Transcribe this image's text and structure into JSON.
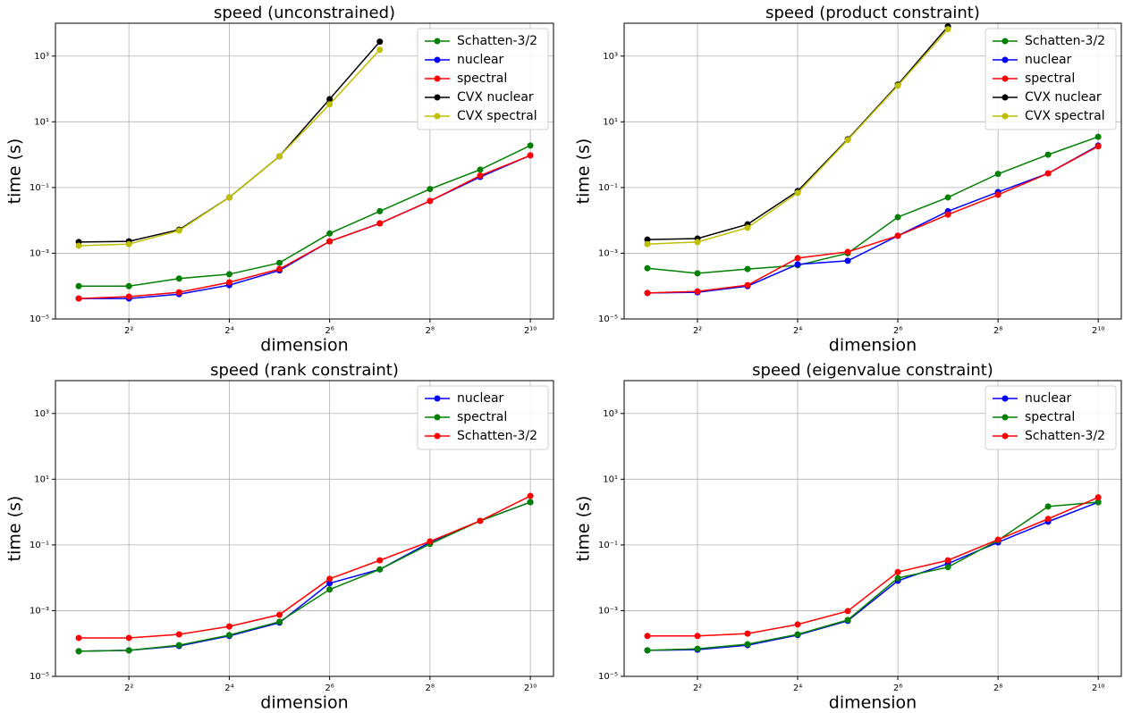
{
  "chart_data": [
    {
      "type": "line",
      "title": "speed (unconstrained)",
      "x_label": "dimension",
      "y_label": "time (s)",
      "x": [
        2,
        4,
        8,
        16,
        32,
        64,
        128,
        256,
        512,
        1024
      ],
      "x_log_base": 2,
      "y_log_base": 10,
      "grid": true,
      "legend": "upper right",
      "xlim": [
        1.45,
        1410
      ],
      "ylim": [
        1e-05,
        10000
      ],
      "xticks": [
        {
          "value": 4,
          "label": "2²"
        },
        {
          "value": 16,
          "label": "2⁴"
        },
        {
          "value": 64,
          "label": "2⁶"
        },
        {
          "value": 256,
          "label": "2⁸"
        },
        {
          "value": 1024,
          "label": "2¹⁰"
        }
      ],
      "yticks": [
        {
          "value": 1e-05,
          "label": "10⁻⁵"
        },
        {
          "value": 0.001,
          "label": "10⁻³"
        },
        {
          "value": 0.1,
          "label": "10⁻¹"
        },
        {
          "value": 10,
          "label": "10¹"
        },
        {
          "value": 1000,
          "label": "10³"
        }
      ],
      "series": [
        {
          "name": "Schatten-3/2",
          "color": "#008000",
          "values": [
            0.0001,
            0.0001,
            0.00017,
            0.00023,
            0.00051,
            0.004,
            0.019,
            0.09,
            0.35,
            1.9
          ]
        },
        {
          "name": "nuclear",
          "color": "#0000ff",
          "values": [
            4.2e-05,
            4.2e-05,
            5.7e-05,
            0.000107,
            0.0003,
            0.0023,
            0.0081,
            0.039,
            0.21,
            0.95
          ]
        },
        {
          "name": "spectral",
          "color": "#ff0000",
          "values": [
            4.2e-05,
            4.8e-05,
            6.5e-05,
            0.00013,
            0.00033,
            0.0023,
            0.0081,
            0.039,
            0.23,
            0.95
          ]
        },
        {
          "name": "CVX nuclear",
          "color": "#000000",
          "values": [
            0.0022,
            0.0023,
            0.0052,
            0.05,
            0.89,
            49,
            2750,
            null,
            null,
            null
          ]
        },
        {
          "name": "CVX spectral",
          "color": "#bfbf00",
          "values": [
            0.0017,
            0.0019,
            0.0049,
            0.05,
            0.89,
            34,
            1550,
            null,
            null,
            null
          ]
        }
      ]
    },
    {
      "type": "line",
      "title": "speed (product constraint)",
      "x_label": "dimension",
      "y_label": "time (s)",
      "x": [
        2,
        4,
        8,
        16,
        32,
        64,
        128,
        256,
        512,
        1024
      ],
      "x_log_base": 2,
      "y_log_base": 10,
      "grid": true,
      "legend": "upper right",
      "xlim": [
        1.45,
        1410
      ],
      "ylim": [
        1e-05,
        10000
      ],
      "xticks": [
        {
          "value": 4,
          "label": "2²"
        },
        {
          "value": 16,
          "label": "2⁴"
        },
        {
          "value": 64,
          "label": "2⁶"
        },
        {
          "value": 256,
          "label": "2⁸"
        },
        {
          "value": 1024,
          "label": "2¹⁰"
        }
      ],
      "yticks": [
        {
          "value": 1e-05,
          "label": "10⁻⁵"
        },
        {
          "value": 0.001,
          "label": "10⁻³"
        },
        {
          "value": 0.1,
          "label": "10⁻¹"
        },
        {
          "value": 10,
          "label": "10¹"
        },
        {
          "value": 1000,
          "label": "10³"
        }
      ],
      "series": [
        {
          "name": "Schatten-3/2",
          "color": "#008000",
          "values": [
            0.00035,
            0.000245,
            0.00033,
            0.00043,
            0.001,
            0.0126,
            0.05,
            0.26,
            1.0,
            3.5
          ]
        },
        {
          "name": "nuclear",
          "color": "#0000ff",
          "values": [
            6.2e-05,
            6.5e-05,
            0.0001,
            0.00046,
            0.00059,
            0.0034,
            0.019,
            0.073,
            0.27,
            1.9
          ]
        },
        {
          "name": "spectral",
          "color": "#ff0000",
          "values": [
            6.2e-05,
            6.9e-05,
            0.000107,
            0.00071,
            0.0011,
            0.0034,
            0.015,
            0.06,
            0.27,
            1.8
          ]
        },
        {
          "name": "CVX nuclear",
          "color": "#000000",
          "values": [
            0.0026,
            0.0028,
            0.0076,
            0.078,
            2.95,
            135,
            8000,
            null,
            null,
            null
          ]
        },
        {
          "name": "CVX spectral",
          "color": "#bfbf00",
          "values": [
            0.0019,
            0.0022,
            0.006,
            0.069,
            2.8,
            126,
            6600,
            null,
            null,
            null
          ]
        }
      ]
    },
    {
      "type": "line",
      "title": "speed (rank constraint)",
      "x_label": "dimension",
      "y_label": "time (s)",
      "x": [
        2,
        4,
        8,
        16,
        32,
        64,
        128,
        256,
        512,
        1024
      ],
      "x_log_base": 2,
      "y_log_base": 10,
      "grid": true,
      "legend": "upper right",
      "xlim": [
        1.45,
        1410
      ],
      "ylim": [
        1e-05,
        10000
      ],
      "xticks": [
        {
          "value": 4,
          "label": "2²"
        },
        {
          "value": 16,
          "label": "2⁴"
        },
        {
          "value": 64,
          "label": "2⁶"
        },
        {
          "value": 256,
          "label": "2⁸"
        },
        {
          "value": 1024,
          "label": "2¹⁰"
        }
      ],
      "yticks": [
        {
          "value": 1e-05,
          "label": "10⁻⁵"
        },
        {
          "value": 0.001,
          "label": "10⁻³"
        },
        {
          "value": 0.1,
          "label": "10⁻¹"
        },
        {
          "value": 10,
          "label": "10¹"
        },
        {
          "value": 1000,
          "label": "10³"
        }
      ],
      "series": [
        {
          "name": "nuclear",
          "color": "#0000ff",
          "values": [
            5.8e-05,
            6.2e-05,
            8.4e-05,
            0.00017,
            0.00043,
            0.0068,
            0.018,
            0.12,
            0.54,
            2.0
          ]
        },
        {
          "name": "spectral",
          "color": "#008000",
          "values": [
            5.8e-05,
            6.2e-05,
            8.9e-05,
            0.00018,
            0.00046,
            0.0044,
            0.018,
            0.107,
            0.54,
            2.0
          ]
        },
        {
          "name": "Schatten-3/2",
          "color": "#ff0000",
          "values": [
            0.000148,
            0.000148,
            0.00019,
            0.00033,
            0.00075,
            0.0093,
            0.034,
            0.128,
            0.54,
            3.1
          ]
        }
      ]
    },
    {
      "type": "line",
      "title": "speed (eigenvalue constraint)",
      "x_label": "dimension",
      "y_label": "time (s)",
      "x": [
        2,
        4,
        8,
        16,
        32,
        64,
        128,
        256,
        512,
        1024
      ],
      "x_log_base": 2,
      "y_log_base": 10,
      "grid": true,
      "legend": "upper right",
      "xlim": [
        1.45,
        1410
      ],
      "ylim": [
        1e-05,
        10000
      ],
      "xticks": [
        {
          "value": 4,
          "label": "2²"
        },
        {
          "value": 16,
          "label": "2⁴"
        },
        {
          "value": 64,
          "label": "2⁶"
        },
        {
          "value": 256,
          "label": "2⁸"
        },
        {
          "value": 1024,
          "label": "2¹⁰"
        }
      ],
      "yticks": [
        {
          "value": 1e-05,
          "label": "10⁻⁵"
        },
        {
          "value": 0.001,
          "label": "10⁻³"
        },
        {
          "value": 0.1,
          "label": "10⁻¹"
        },
        {
          "value": 10,
          "label": "10¹"
        },
        {
          "value": 1000,
          "label": "10³"
        }
      ],
      "series": [
        {
          "name": "nuclear",
          "color": "#0000ff",
          "values": [
            6.2e-05,
            6.5e-05,
            8.9e-05,
            0.00018,
            0.00049,
            0.0081,
            0.027,
            0.12,
            0.51,
            2.0
          ]
        },
        {
          "name": "spectral",
          "color": "#008000",
          "values": [
            6.2e-05,
            6.9e-05,
            9.5e-05,
            0.00019,
            0.00052,
            0.0098,
            0.021,
            0.138,
            1.48,
            2.0
          ]
        },
        {
          "name": "Schatten-3/2",
          "color": "#ff0000",
          "values": [
            0.00017,
            0.00017,
            0.0002,
            0.00038,
            0.00097,
            0.015,
            0.034,
            0.145,
            0.62,
            2.8
          ]
        }
      ]
    }
  ]
}
